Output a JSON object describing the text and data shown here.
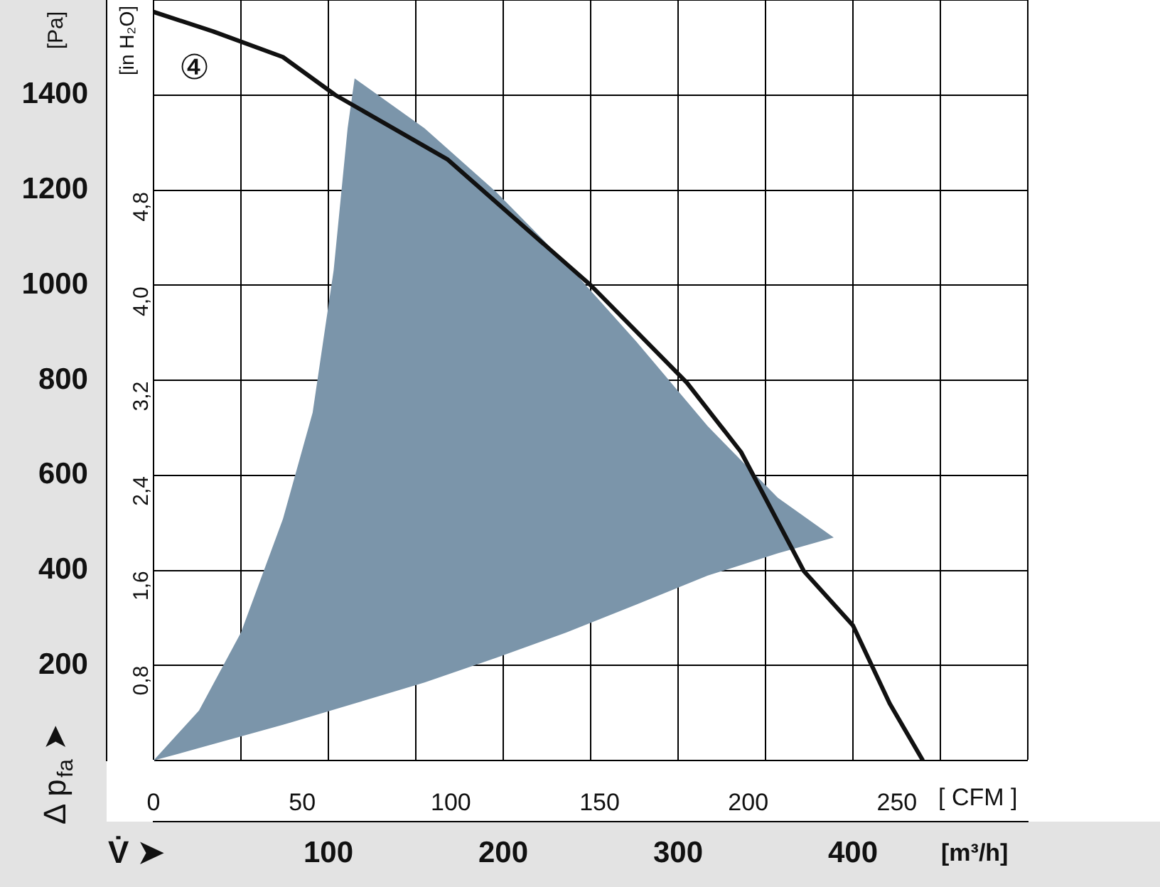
{
  "chart_data": {
    "type": "line",
    "ylabel": "[Pa]",
    "y2label": "[in H₂O]",
    "xlabel": "[m³/h]",
    "x2label": "[ CFM ]",
    "annotations": [
      "Δ p$_{fa}$ ➤",
      "V̇ ➤",
      "④"
    ],
    "xlim": [
      0,
      500
    ],
    "xticks": [
      {
        "value": 0,
        "label": null
      },
      {
        "value": 50,
        "label": null
      },
      100,
      {
        "value": 150,
        "label": null
      },
      200,
      {
        "value": 250,
        "label": null
      },
      300,
      {
        "value": 350,
        "label": null
      },
      400,
      {
        "value": 450,
        "label": null
      },
      {
        "value": 500,
        "label": null
      }
    ],
    "x2lim": [
      0,
      294
    ],
    "x2ticks": [
      0,
      50,
      100,
      150,
      200,
      250
    ],
    "ylim": [
      0,
      1600
    ],
    "yticks": [
      {
        "value": 0,
        "label": null
      },
      200,
      400,
      600,
      800,
      1000,
      1200,
      1400,
      {
        "value": 1600,
        "label": null
      }
    ],
    "y2lim": [
      0,
      6.42
    ],
    "y2ticks": [
      {
        "value": 0.8,
        "label": "0,8"
      },
      {
        "value": 1.6,
        "label": "1,6"
      },
      {
        "value": 2.4,
        "label": "2,4"
      },
      {
        "value": 3.2,
        "label": "3,2"
      },
      {
        "value": 4.0,
        "label": "4,0"
      },
      {
        "value": 4.8,
        "label": "4,8"
      }
    ],
    "grid": true,
    "legend": false,
    "marker": "none",
    "line_style": "solid",
    "series": [
      {
        "type": "area",
        "color": "#7b95aa",
        "x": [
          0,
          26,
          50,
          74,
          91,
          103,
          111,
          115,
          155,
          196,
          236,
          276,
          317,
          357,
          389,
          357,
          317,
          276,
          236,
          196,
          155,
          115,
          74,
          26,
          0
        ],
        "values": [
          0,
          105,
          269,
          508,
          732,
          1031,
          1330,
          1435,
          1330,
          1196,
          1046,
          882,
          703,
          553,
          469,
          436,
          389,
          328,
          269,
          216,
          164,
          120,
          75,
          26,
          0
        ]
      },
      {
        "type": "line",
        "color": "#111111",
        "x": [
          0,
          34,
          74,
          104,
          168,
          250,
          305,
          336,
          372,
          400,
          421,
          440
        ],
        "values": [
          1575,
          1534,
          1480,
          1400,
          1265,
          1000,
          795,
          649,
          398,
          284,
          120,
          0
        ]
      }
    ]
  }
}
